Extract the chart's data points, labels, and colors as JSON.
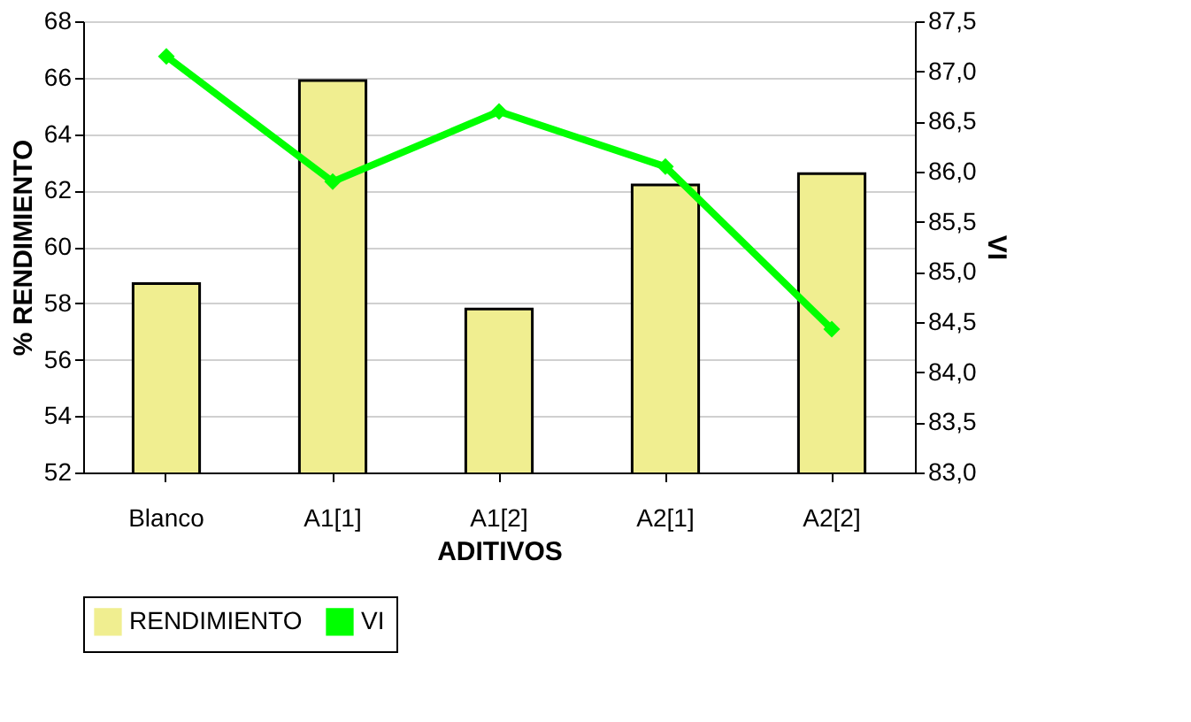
{
  "chart_data": {
    "type": "bar",
    "xlabel": "ADITIVOS",
    "ylabel": "% RENDIMIENTO",
    "y2label": "VI",
    "categories": [
      "Blanco",
      "A1[1]",
      "A1[2]",
      "A2[1]",
      "A2[2]"
    ],
    "series": [
      {
        "name": "RENDIMIENTO",
        "color": "#f0ee90",
        "values": [
          58.7,
          65.9,
          57.8,
          62.2,
          62.6
        ]
      },
      {
        "name": "VI",
        "type": "line",
        "axis": "y2",
        "color": "#00ff00",
        "marker": "diamond",
        "values": [
          87.15,
          85.9,
          86.6,
          86.05,
          84.43
        ]
      }
    ],
    "ylim": [
      52,
      68
    ],
    "yticks": [
      52,
      54,
      56,
      58,
      60,
      62,
      64,
      66,
      68
    ],
    "y2lim": [
      83,
      87.5
    ],
    "y2ticks": [
      {
        "value": 83,
        "label": "83,0"
      },
      {
        "value": 83.5,
        "label": "83,5"
      },
      {
        "value": 84,
        "label": "84,0"
      },
      {
        "value": 84.5,
        "label": "84,5"
      },
      {
        "value": 85,
        "label": "85,0"
      },
      {
        "value": 85.5,
        "label": "85,5"
      },
      {
        "value": 86,
        "label": "86,0"
      },
      {
        "value": 86.5,
        "label": "86,5"
      },
      {
        "value": 87,
        "label": "87,0"
      },
      {
        "value": 87.5,
        "label": "87,5"
      }
    ],
    "grid": "y",
    "legend": "bottom"
  }
}
